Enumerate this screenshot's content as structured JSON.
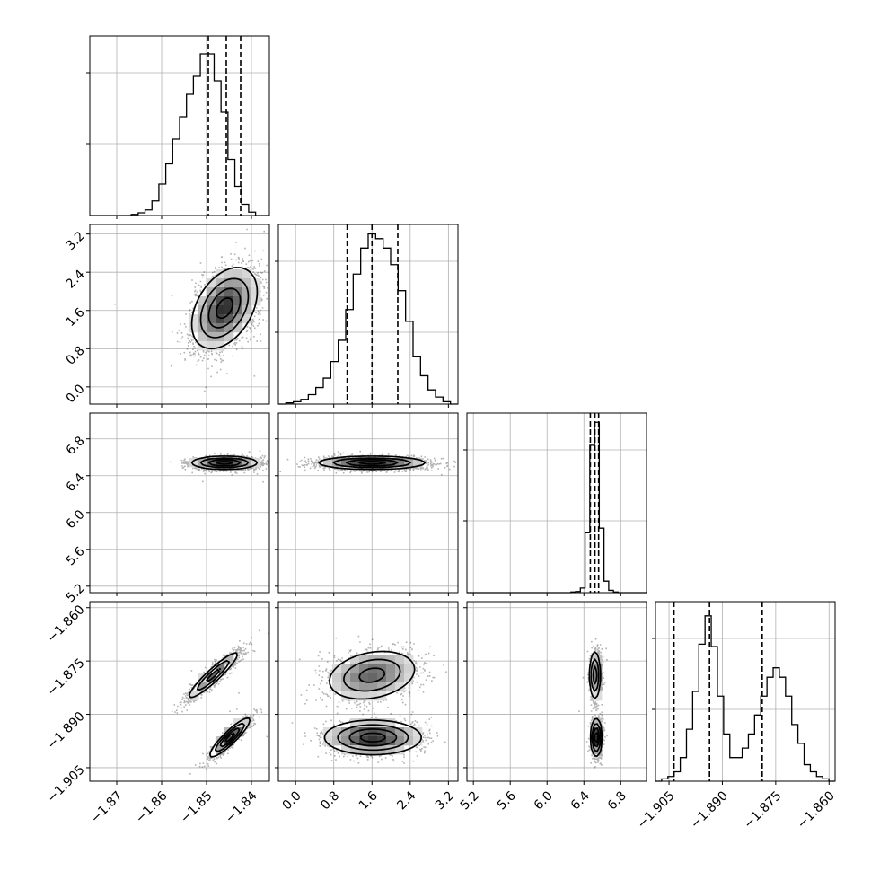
{
  "chart_data": {
    "type": "corner",
    "grid": true,
    "parameters": [
      {
        "range": [
          -1.876,
          -1.836
        ],
        "ticks": [
          -1.87,
          -1.86,
          -1.85,
          -1.84
        ],
        "tick_labels": [
          "−1.87",
          "−1.86",
          "−1.85",
          "−1.84"
        ],
        "quantiles": [
          -1.8496,
          -1.8456,
          -1.8424
        ],
        "hist": [
          0,
          0,
          0,
          0,
          0,
          0,
          0.5,
          1.2,
          2.5,
          6.5,
          14,
          23,
          34,
          44,
          54,
          62,
          72,
          72,
          60,
          46,
          25,
          13,
          5,
          1.5,
          0,
          0
        ],
        "hist_max": 80
      },
      {
        "range": [
          -0.36,
          3.4
        ],
        "ticks": [
          0.0,
          0.8,
          1.6,
          2.4,
          3.2
        ],
        "tick_labels": [
          "0.0",
          "0.8",
          "1.6",
          "2.4",
          "3.2"
        ],
        "quantiles": [
          1.08,
          1.6,
          2.14
        ],
        "hist": [
          0,
          0.5,
          1,
          2,
          4,
          7,
          11,
          18,
          27,
          40,
          55,
          66,
          72,
          70,
          66,
          59,
          48,
          35,
          20,
          12,
          6,
          3,
          1,
          0
        ],
        "hist_max": 76
      },
      {
        "range": [
          5.13,
          7.08
        ],
        "ticks": [
          5.2,
          5.6,
          6.0,
          6.4,
          6.8
        ],
        "tick_labels": [
          "5.2",
          "5.6",
          "6.0",
          "6.4",
          "6.8"
        ],
        "quantiles": [
          6.47,
          6.52,
          6.56
        ],
        "hist": [
          0,
          0,
          0,
          0,
          0,
          0,
          0,
          0,
          0,
          0,
          0,
          0,
          0,
          0,
          0,
          0,
          0,
          0,
          0,
          0,
          0,
          0,
          0.3,
          0.5,
          2,
          26,
          64,
          74,
          28,
          5,
          1,
          0.3,
          0,
          0,
          0,
          0,
          0,
          0
        ],
        "hist_max": 78
      },
      {
        "range": [
          -1.9088,
          -1.8583
        ],
        "ticks": [
          -1.905,
          -1.89,
          -1.875,
          -1.86
        ],
        "tick_labels": [
          "−1.905",
          "−1.890",
          "−1.875",
          "−1.860"
        ],
        "quantiles": [
          -1.9036,
          -1.8936,
          -1.8788
        ],
        "hist": [
          0,
          1,
          2,
          4,
          10,
          22,
          38,
          58,
          70,
          57,
          36,
          20,
          10,
          10,
          14,
          20,
          28,
          36,
          44,
          48,
          44,
          36,
          24,
          16,
          7,
          4,
          2,
          1,
          0
        ],
        "hist_max": 76
      }
    ],
    "pairs": [
      {
        "row": 1,
        "col": 0,
        "peaks": [
          {
            "x": -1.846,
            "y": 1.65,
            "sx": 0.0036,
            "sy": 0.42,
            "rho": 0.4,
            "w": 1
          }
        ]
      },
      {
        "row": 2,
        "col": 0,
        "peaks": [
          {
            "x": -1.846,
            "y": 6.54,
            "sx": 0.0036,
            "sy": 0.035,
            "rho": 0.0,
            "w": 1
          }
        ]
      },
      {
        "row": 2,
        "col": 1,
        "peaks": [
          {
            "x": 1.6,
            "y": 6.54,
            "sx": 0.55,
            "sy": 0.035,
            "rho": 0.0,
            "w": 1
          }
        ]
      },
      {
        "row": 3,
        "col": 0,
        "peaks": [
          {
            "x": -1.8485,
            "y": -1.879,
            "sx": 0.0029,
            "sy": 0.0034,
            "rho": 0.93,
            "w": 0.5
          },
          {
            "x": -1.8448,
            "y": -1.8965,
            "sx": 0.0022,
            "sy": 0.0027,
            "rho": 0.9,
            "w": 0.5
          }
        ]
      },
      {
        "row": 3,
        "col": 1,
        "peaks": [
          {
            "x": 1.6,
            "y": -1.879,
            "sx": 0.48,
            "sy": 0.0036,
            "rho": 0.25,
            "w": 0.5
          },
          {
            "x": 1.62,
            "y": -1.8965,
            "sx": 0.5,
            "sy": 0.0024,
            "rho": 0.0,
            "w": 0.5
          }
        ]
      },
      {
        "row": 3,
        "col": 2,
        "peaks": [
          {
            "x": 6.52,
            "y": -1.879,
            "sx": 0.03,
            "sy": 0.0034,
            "rho": 0.0,
            "w": 0.5
          },
          {
            "x": 6.535,
            "y": -1.8965,
            "sx": 0.03,
            "sy": 0.0026,
            "rho": 0.0,
            "w": 0.5
          }
        ]
      }
    ]
  }
}
